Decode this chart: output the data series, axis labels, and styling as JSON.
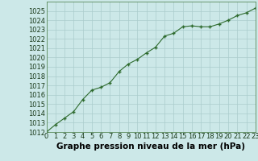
{
  "x": [
    0,
    1,
    2,
    3,
    4,
    5,
    6,
    7,
    8,
    9,
    10,
    11,
    12,
    13,
    14,
    15,
    16,
    17,
    18,
    19,
    20,
    21,
    22,
    23
  ],
  "y": [
    1012.0,
    1012.8,
    1013.5,
    1014.2,
    1015.5,
    1016.5,
    1016.8,
    1017.3,
    1018.5,
    1019.3,
    1019.8,
    1020.5,
    1021.1,
    1022.3,
    1022.6,
    1023.3,
    1023.4,
    1023.3,
    1023.3,
    1023.6,
    1024.0,
    1024.5,
    1024.8,
    1025.3
  ],
  "line_color": "#2d6a2d",
  "marker_color": "#2d6a2d",
  "bg_color": "#cce8e8",
  "grid_color": "#aacccc",
  "title": "Graphe pression niveau de la mer (hPa)",
  "ylim": [
    1012,
    1026
  ],
  "xlim": [
    0,
    23
  ],
  "yticks": [
    1012,
    1013,
    1014,
    1015,
    1016,
    1017,
    1018,
    1019,
    1020,
    1021,
    1022,
    1023,
    1024,
    1025
  ],
  "xticks": [
    0,
    1,
    2,
    3,
    4,
    5,
    6,
    7,
    8,
    9,
    10,
    11,
    12,
    13,
    14,
    15,
    16,
    17,
    18,
    19,
    20,
    21,
    22,
    23
  ],
  "title_fontsize": 7.5,
  "tick_fontsize": 6.0,
  "line_width": 0.8,
  "marker_size": 3.5
}
